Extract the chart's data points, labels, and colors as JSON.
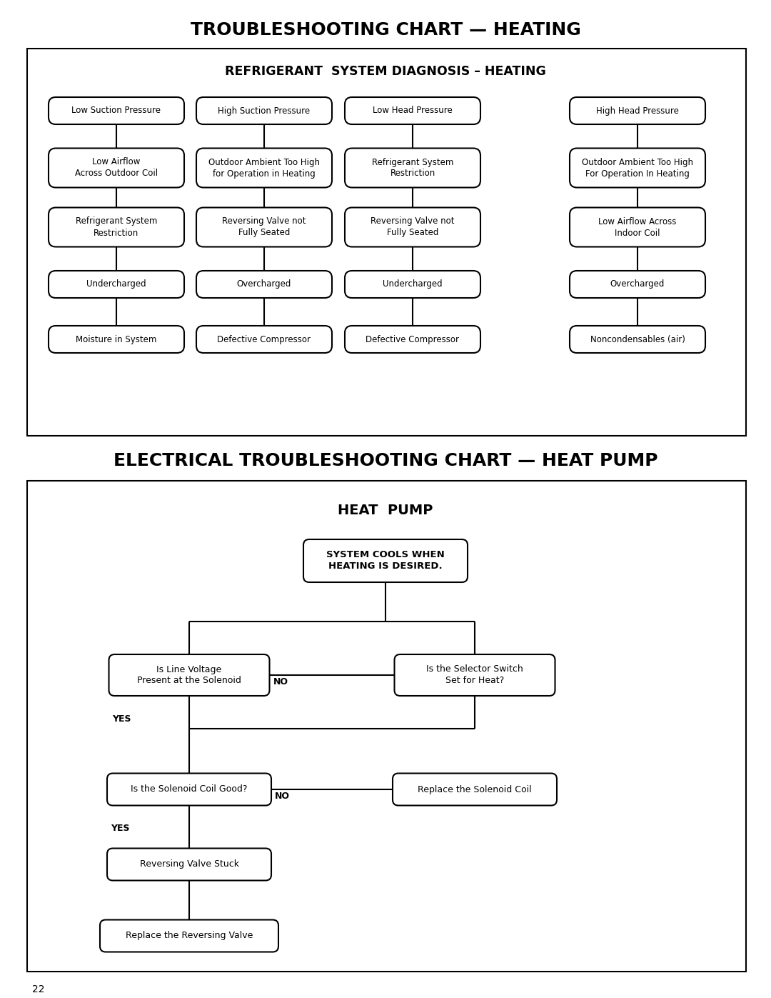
{
  "page_title1": "TROUBLESHOOTING CHART — HEATING",
  "page_title2": "ELECTRICAL TROUBLESHOOTING CHART — HEAT PUMP",
  "page_number": "22",
  "section1_title": "REFRIGERANT  SYSTEM DIAGNOSIS – HEATING",
  "section2_title": "HEAT  PUMP",
  "section2_subtitle": "SYSTEM COOLS WHEN\nHEATING IS DESIRED.",
  "col1_boxes": [
    "Low Suction Pressure",
    "Low Airflow\nAcross Outdoor Coil",
    "Refrigerant System\nRestriction",
    "Undercharged",
    "Moisture in System"
  ],
  "col2_boxes": [
    "High Suction Pressure",
    "Outdoor Ambient Too High\nfor Operation in Heating",
    "Reversing Valve not\nFully Seated",
    "Overcharged",
    "Defective Compressor"
  ],
  "col3_boxes": [
    "Low Head Pressure",
    "Refrigerant System\nRestriction",
    "Reversing Valve not\nFully Seated",
    "Undercharged",
    "Defective Compressor"
  ],
  "col4_boxes": [
    "High Head Pressure",
    "Outdoor Ambient Too High\nFor Operation In Heating",
    "Low Airflow Across\nIndoor Coil",
    "Overcharged",
    "Noncondensables (air)"
  ],
  "bg_color": "#ffffff",
  "box_edge_color": "#000000",
  "text_color": "#000000",
  "line_color": "#000000"
}
